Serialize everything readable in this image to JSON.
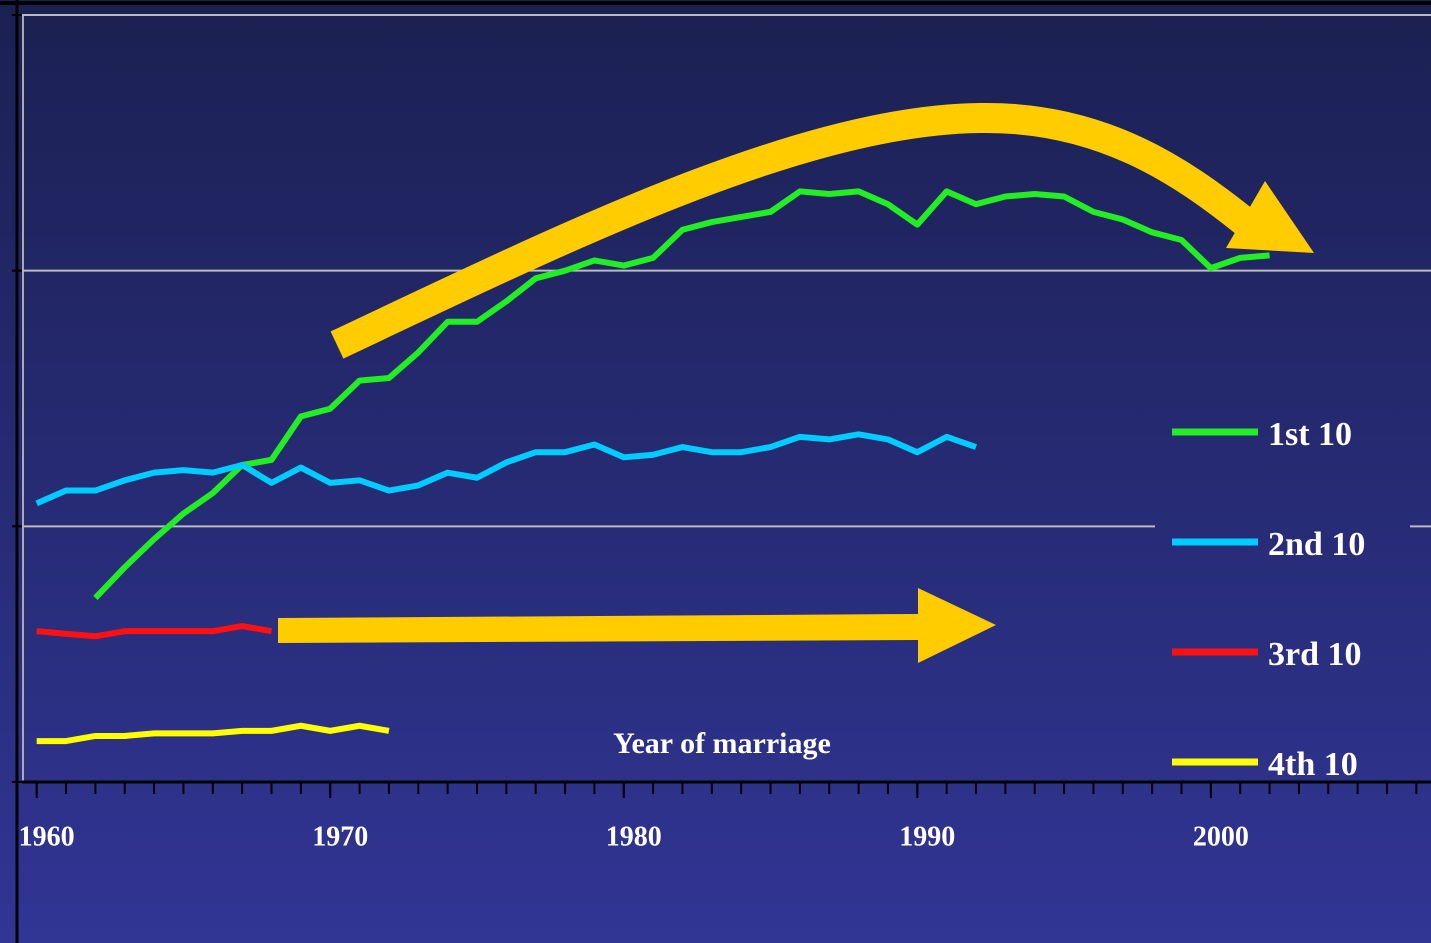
{
  "chart_data": {
    "type": "line",
    "x_label": "Year of marriage",
    "x": [
      1960,
      1961,
      1962,
      1963,
      1964,
      1965,
      1966,
      1967,
      1968,
      1969,
      1970,
      1971,
      1972,
      1973,
      1974,
      1975,
      1976,
      1977,
      1978,
      1979,
      1980,
      1981,
      1982,
      1983,
      1984,
      1985,
      1986,
      1987,
      1988,
      1989,
      1990,
      1991,
      1992,
      1993,
      1994,
      1995,
      1996,
      1997,
      1998,
      1999,
      2000,
      2001,
      2002
    ],
    "series": [
      {
        "name": "1st 10",
        "color": "#22ee22",
        "values": [
          null,
          null,
          0.72,
          0.84,
          0.95,
          1.05,
          1.13,
          1.24,
          1.26,
          1.43,
          1.46,
          1.57,
          1.58,
          1.68,
          1.8,
          1.8,
          1.88,
          1.97,
          2.0,
          2.04,
          2.02,
          2.05,
          2.16,
          2.19,
          2.21,
          2.23,
          2.31,
          2.3,
          2.31,
          2.26,
          2.18,
          2.31,
          2.26,
          2.29,
          2.3,
          2.29,
          2.23,
          2.2,
          2.15,
          2.12,
          2.01,
          2.05,
          2.06
        ]
      },
      {
        "name": "2nd 10",
        "color": "#00ccff",
        "values": [
          1.09,
          1.14,
          1.14,
          1.18,
          1.21,
          1.22,
          1.21,
          1.24,
          1.17,
          1.23,
          1.17,
          1.18,
          1.14,
          1.16,
          1.21,
          1.19,
          1.25,
          1.29,
          1.29,
          1.32,
          1.27,
          1.28,
          1.31,
          1.29,
          1.29,
          1.31,
          1.35,
          1.34,
          1.36,
          1.34,
          1.29,
          1.35,
          1.31,
          null,
          null,
          null,
          null,
          null,
          null,
          null,
          null,
          null,
          null
        ]
      },
      {
        "name": "3rd 10",
        "color": "#ff1111",
        "values": [
          0.59,
          0.58,
          0.57,
          0.59,
          0.59,
          0.59,
          0.59,
          0.61,
          0.59,
          null,
          null,
          null,
          null,
          null,
          null,
          null,
          null,
          null,
          null,
          null,
          null,
          null,
          null,
          null,
          null,
          null,
          null,
          null,
          null,
          null,
          null,
          null,
          null,
          null,
          null,
          null,
          null,
          null,
          null,
          null,
          null,
          null,
          null
        ]
      },
      {
        "name": "4th 10",
        "color": "#ffff00",
        "values": [
          0.16,
          0.16,
          0.18,
          0.18,
          0.19,
          0.19,
          0.19,
          0.2,
          0.2,
          0.22,
          0.2,
          0.22,
          0.2,
          null,
          null,
          null,
          null,
          null,
          null,
          null,
          null,
          null,
          null,
          null,
          null,
          null,
          null,
          null,
          null,
          null,
          null,
          null,
          null,
          null,
          null,
          null,
          null,
          null,
          null,
          null,
          null,
          null,
          null
        ]
      }
    ],
    "xlim": [
      1959.5,
      2007.5
    ],
    "xticks": [
      1960,
      1970,
      1980,
      1990,
      2000
    ],
    "xminorticks": [
      1960,
      1961,
      1962,
      1963,
      1964,
      1965,
      1966,
      1967,
      1968,
      1969,
      1970,
      1971,
      1972,
      1973,
      1974,
      1975,
      1976,
      1977,
      1978,
      1979,
      1980,
      1981,
      1982,
      1983,
      1984,
      1985,
      1986,
      1987,
      1988,
      1989,
      1990,
      1991,
      1992,
      1993,
      1994,
      1995,
      1996,
      1997,
      1998,
      1999,
      2000,
      2001,
      2002,
      2003,
      2004,
      2005,
      2006,
      2007
    ],
    "ylim": [
      0,
      3
    ],
    "yticks": [
      0,
      1,
      2,
      3
    ],
    "grid": true,
    "legend": "right"
  }
}
